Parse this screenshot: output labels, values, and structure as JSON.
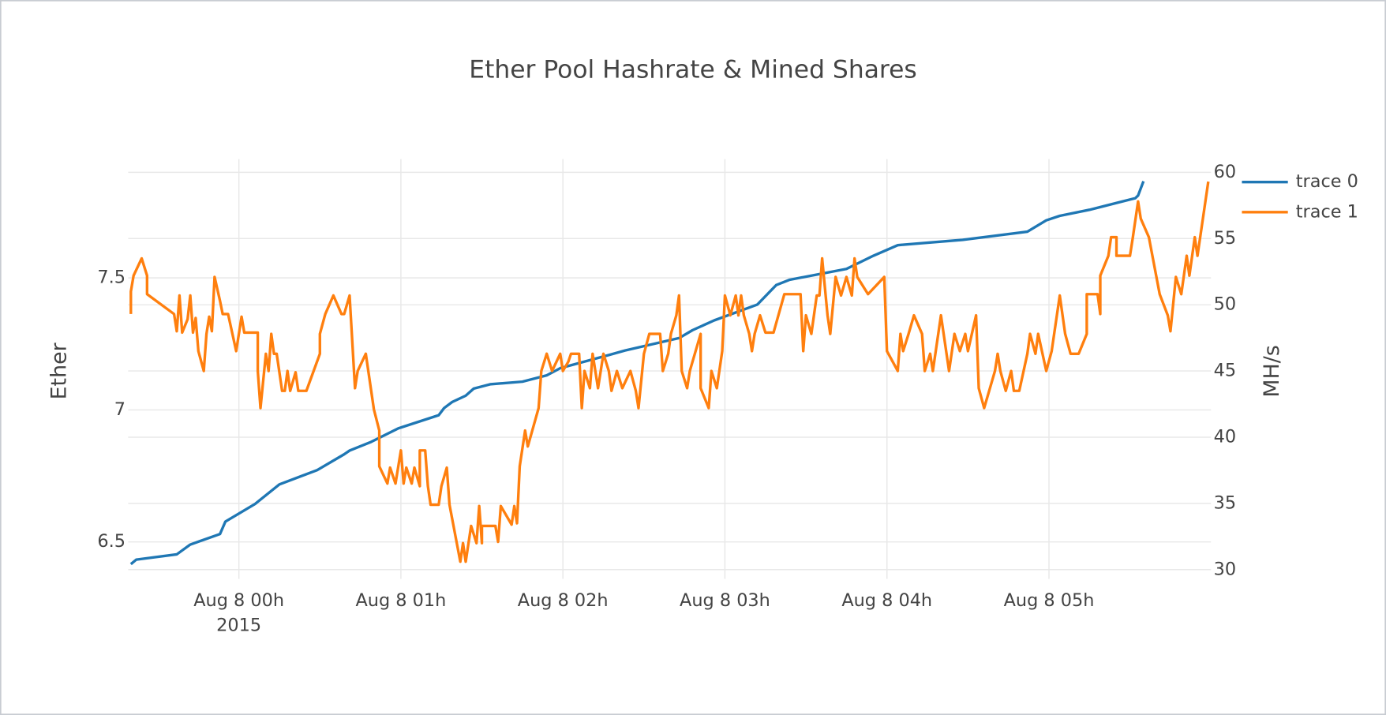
{
  "chart_data": {
    "type": "line",
    "title": "Ether Pool Hashrate & Mined Shares",
    "y_label": "Ether",
    "y2_label": "MH/s",
    "xlim": [
      "2015-08-07T23:19",
      "2015-08-08T06:00"
    ],
    "xticks": [
      {
        "value": "2015-08-08T00:00",
        "label": "Aug 8 00h"
      },
      {
        "value": "2015-08-08T01:00",
        "label": "Aug 8 01h"
      },
      {
        "value": "2015-08-08T02:00",
        "label": "Aug 8 02h"
      },
      {
        "value": "2015-08-08T03:00",
        "label": "Aug 8 03h"
      },
      {
        "value": "2015-08-08T04:00",
        "label": "Aug 8 04h"
      },
      {
        "value": "2015-08-08T05:00",
        "label": "Aug 8 05h"
      }
    ],
    "x_year_label": "2015",
    "ylim": [
      6.36,
      7.95
    ],
    "yticks": [
      6.5,
      7,
      7.5
    ],
    "y2lim": [
      29.3,
      61
    ],
    "y2ticks": [
      30,
      35,
      40,
      45,
      50,
      55,
      60
    ],
    "grid": true,
    "legend": "right",
    "series": [
      {
        "name": "trace 0",
        "color": "#1f77b4",
        "axis": "y",
        "x": [
          "2015-08-07T23:20",
          "2015-08-07T23:22",
          "2015-08-07T23:37",
          "2015-08-07T23:42",
          "2015-08-07T23:53",
          "2015-08-07T23:55",
          "2015-08-08T00:06",
          "2015-08-08T00:15",
          "2015-08-08T00:29",
          "2015-08-08T00:39",
          "2015-08-08T00:41",
          "2015-08-08T00:49",
          "2015-08-08T00:59",
          "2015-08-08T01:14",
          "2015-08-08T01:16",
          "2015-08-08T01:19",
          "2015-08-08T01:24",
          "2015-08-08T01:27",
          "2015-08-08T01:33",
          "2015-08-08T01:45",
          "2015-08-08T01:54",
          "2015-08-08T01:59",
          "2015-08-08T02:17",
          "2015-08-08T02:23",
          "2015-08-08T02:43",
          "2015-08-08T02:48",
          "2015-08-08T02:56",
          "2015-08-08T03:12",
          "2015-08-08T03:19",
          "2015-08-08T03:24",
          "2015-08-08T03:45",
          "2015-08-08T03:55",
          "2015-08-08T04:04",
          "2015-08-08T04:28",
          "2015-08-08T04:52",
          "2015-08-08T04:59",
          "2015-08-08T05:04",
          "2015-08-08T05:15",
          "2015-08-08T05:32",
          "2015-08-08T05:33",
          "2015-08-08T05:35"
        ],
        "values": [
          6.416,
          6.433,
          6.453,
          6.49,
          6.53,
          6.577,
          6.644,
          6.718,
          6.772,
          6.832,
          6.846,
          6.879,
          6.93,
          6.98,
          7.007,
          7.03,
          7.054,
          7.081,
          7.097,
          7.107,
          7.131,
          7.158,
          7.208,
          7.225,
          7.272,
          7.302,
          7.339,
          7.399,
          7.473,
          7.493,
          7.534,
          7.584,
          7.624,
          7.644,
          7.675,
          7.718,
          7.735,
          7.758,
          7.802,
          7.812,
          7.866
        ]
      },
      {
        "name": "trace 1",
        "color": "#ff7f0e",
        "axis": "y2",
        "x": [
          "2015-08-07T23:20",
          "2015-08-07T23:20",
          "2015-08-07T23:21",
          "2015-08-07T23:24",
          "2015-08-07T23:26",
          "2015-08-07T23:26",
          "2015-08-07T23:36",
          "2015-08-07T23:37",
          "2015-08-07T23:38",
          "2015-08-07T23:39",
          "2015-08-07T23:41",
          "2015-08-07T23:42",
          "2015-08-07T23:43",
          "2015-08-07T23:44",
          "2015-08-07T23:45",
          "2015-08-07T23:47",
          "2015-08-07T23:48",
          "2015-08-07T23:49",
          "2015-08-07T23:50",
          "2015-08-07T23:51",
          "2015-08-07T23:53",
          "2015-08-07T23:54",
          "2015-08-07T23:56",
          "2015-08-07T23:59",
          "2015-08-08T00:00",
          "2015-08-08T00:01",
          "2015-08-08T00:02",
          "2015-08-08T00:07",
          "2015-08-08T00:07",
          "2015-08-08T00:08",
          "2015-08-08T00:10",
          "2015-08-08T00:11",
          "2015-08-08T00:12",
          "2015-08-08T00:13",
          "2015-08-08T00:14",
          "2015-08-08T00:16",
          "2015-08-08T00:17",
          "2015-08-08T00:18",
          "2015-08-08T00:19",
          "2015-08-08T00:21",
          "2015-08-08T00:22",
          "2015-08-08T00:25",
          "2015-08-08T00:30",
          "2015-08-08T00:30",
          "2015-08-08T00:32",
          "2015-08-08T00:35",
          "2015-08-08T00:38",
          "2015-08-08T00:39",
          "2015-08-08T00:41",
          "2015-08-08T00:43",
          "2015-08-08T00:44",
          "2015-08-08T00:47",
          "2015-08-08T00:50",
          "2015-08-08T00:52",
          "2015-08-08T00:52",
          "2015-08-08T00:55",
          "2015-08-08T00:56",
          "2015-08-08T00:58",
          "2015-08-08T01:00",
          "2015-08-08T01:01",
          "2015-08-08T01:02",
          "2015-08-08T01:04",
          "2015-08-08T01:05",
          "2015-08-08T01:07",
          "2015-08-08T01:07",
          "2015-08-08T01:09",
          "2015-08-08T01:10",
          "2015-08-08T01:11",
          "2015-08-08T01:14",
          "2015-08-08T01:15",
          "2015-08-08T01:17",
          "2015-08-08T01:18",
          "2015-08-08T01:22",
          "2015-08-08T01:23",
          "2015-08-08T01:24",
          "2015-08-08T01:26",
          "2015-08-08T01:28",
          "2015-08-08T01:29",
          "2015-08-08T01:30",
          "2015-08-08T01:30",
          "2015-08-08T01:35",
          "2015-08-08T01:36",
          "2015-08-08T01:37",
          "2015-08-08T01:41",
          "2015-08-08T01:42",
          "2015-08-08T01:43",
          "2015-08-08T01:44",
          "2015-08-08T01:46",
          "2015-08-08T01:47",
          "2015-08-08T01:51",
          "2015-08-08T01:52",
          "2015-08-08T01:54",
          "2015-08-08T01:56",
          "2015-08-08T01:59",
          "2015-08-08T02:00",
          "2015-08-08T02:02",
          "2015-08-08T02:03",
          "2015-08-08T02:06",
          "2015-08-08T02:07",
          "2015-08-08T02:08",
          "2015-08-08T02:10",
          "2015-08-08T02:11",
          "2015-08-08T02:13",
          "2015-08-08T02:15",
          "2015-08-08T02:17",
          "2015-08-08T02:18",
          "2015-08-08T02:20",
          "2015-08-08T02:22",
          "2015-08-08T02:25",
          "2015-08-08T02:27",
          "2015-08-08T02:28",
          "2015-08-08T02:30",
          "2015-08-08T02:32",
          "2015-08-08T02:36",
          "2015-08-08T02:37",
          "2015-08-08T02:39",
          "2015-08-08T02:40",
          "2015-08-08T02:42",
          "2015-08-08T02:43",
          "2015-08-08T02:44",
          "2015-08-08T02:46",
          "2015-08-08T02:47",
          "2015-08-08T02:51",
          "2015-08-08T02:51",
          "2015-08-08T02:54",
          "2015-08-08T02:55",
          "2015-08-08T02:57",
          "2015-08-08T02:59",
          "2015-08-08T03:00",
          "2015-08-08T03:02",
          "2015-08-08T03:04",
          "2015-08-08T03:05",
          "2015-08-08T03:06",
          "2015-08-08T03:07",
          "2015-08-08T03:09",
          "2015-08-08T03:10",
          "2015-08-08T03:11",
          "2015-08-08T03:13",
          "2015-08-08T03:15",
          "2015-08-08T03:18",
          "2015-08-08T03:22",
          "2015-08-08T03:28",
          "2015-08-08T03:29",
          "2015-08-08T03:30",
          "2015-08-08T03:32",
          "2015-08-08T03:34",
          "2015-08-08T03:35",
          "2015-08-08T03:36",
          "2015-08-08T03:38",
          "2015-08-08T03:39",
          "2015-08-08T03:41",
          "2015-08-08T03:43",
          "2015-08-08T03:45",
          "2015-08-08T03:47",
          "2015-08-08T03:48",
          "2015-08-08T03:49",
          "2015-08-08T03:53",
          "2015-08-08T03:59",
          "2015-08-08T04:00",
          "2015-08-08T04:04",
          "2015-08-08T04:05",
          "2015-08-08T04:06",
          "2015-08-08T04:08",
          "2015-08-08T04:10",
          "2015-08-08T04:13",
          "2015-08-08T04:14",
          "2015-08-08T04:16",
          "2015-08-08T04:17",
          "2015-08-08T04:20",
          "2015-08-08T04:23",
          "2015-08-08T04:25",
          "2015-08-08T04:27",
          "2015-08-08T04:29",
          "2015-08-08T04:30",
          "2015-08-08T04:33",
          "2015-08-08T04:34",
          "2015-08-08T04:36",
          "2015-08-08T04:40",
          "2015-08-08T04:41",
          "2015-08-08T04:42",
          "2015-08-08T04:44",
          "2015-08-08T04:46",
          "2015-08-08T04:47",
          "2015-08-08T04:49",
          "2015-08-08T04:52",
          "2015-08-08T04:53",
          "2015-08-08T04:55",
          "2015-08-08T04:56",
          "2015-08-08T04:59",
          "2015-08-08T05:01",
          "2015-08-08T05:04",
          "2015-08-08T05:06",
          "2015-08-08T05:08",
          "2015-08-08T05:11",
          "2015-08-08T05:14",
          "2015-08-08T05:14",
          "2015-08-08T05:18",
          "2015-08-08T05:19",
          "2015-08-08T05:19",
          "2015-08-08T05:22",
          "2015-08-08T05:23",
          "2015-08-08T05:25",
          "2015-08-08T05:25",
          "2015-08-08T05:30",
          "2015-08-08T05:31",
          "2015-08-08T05:33",
          "2015-08-08T05:34",
          "2015-08-08T05:37",
          "2015-08-08T05:41",
          "2015-08-08T05:44",
          "2015-08-08T05:45",
          "2015-08-08T05:47",
          "2015-08-08T05:49",
          "2015-08-08T05:51",
          "2015-08-08T05:52",
          "2015-08-08T05:54",
          "2015-08-08T05:55",
          "2015-08-08T05:57",
          "2015-08-08T05:59"
        ],
        "values": [
          49.3,
          51,
          52.2,
          53.5,
          52.2,
          50.8,
          49.3,
          48,
          50.7,
          47.9,
          48.9,
          50.7,
          47.9,
          49,
          46.5,
          45,
          47.8,
          49.1,
          48,
          52.1,
          50.3,
          49.3,
          49.3,
          46.5,
          47.8,
          49.1,
          47.9,
          47.9,
          45,
          42.2,
          46.3,
          45,
          47.8,
          46.3,
          46.3,
          43.5,
          43.5,
          45,
          43.5,
          44.9,
          43.5,
          43.5,
          46.3,
          47.8,
          49.3,
          50.7,
          49.3,
          49.3,
          50.7,
          43.7,
          45,
          46.3,
          42.1,
          40.5,
          37.8,
          36.5,
          37.7,
          36.5,
          39,
          36.5,
          37.7,
          36.5,
          37.7,
          36.3,
          39,
          39,
          36.3,
          34.9,
          34.9,
          36.3,
          37.7,
          34.9,
          30.6,
          32,
          30.6,
          33.3,
          32,
          34.8,
          32,
          33.3,
          33.3,
          32.1,
          34.8,
          33.4,
          34.8,
          33.5,
          37.8,
          40.5,
          39.3,
          42.2,
          45,
          46.3,
          45,
          46.3,
          45,
          45.7,
          46.3,
          46.3,
          42.2,
          45,
          43.7,
          46.3,
          43.7,
          46.3,
          45,
          43.5,
          45,
          43.7,
          45,
          43.5,
          42.2,
          46.3,
          47.8,
          47.8,
          45,
          46.3,
          47.8,
          49.2,
          50.7,
          45,
          43.7,
          45,
          47.8,
          43.7,
          42.2,
          45,
          43.7,
          46.5,
          50.7,
          49.2,
          50.7,
          49.2,
          50.7,
          49.2,
          47.8,
          46.5,
          47.8,
          49.2,
          47.9,
          47.9,
          50.8,
          50.8,
          46.5,
          49.2,
          47.8,
          50.7,
          50.7,
          53.5,
          49.2,
          47.8,
          52.1,
          50.7,
          52.1,
          50.7,
          53.5,
          52.1,
          50.8,
          52.1,
          46.5,
          45,
          47.8,
          46.5,
          47.8,
          49.2,
          47.8,
          45,
          46.3,
          45,
          49.2,
          45,
          47.8,
          46.5,
          47.8,
          46.5,
          49.2,
          43.7,
          42.2,
          45,
          46.3,
          45,
          43.5,
          45,
          43.5,
          43.5,
          46.3,
          47.8,
          46.3,
          47.8,
          45,
          46.5,
          50.7,
          47.8,
          46.3,
          46.3,
          47.8,
          50.8,
          50.8,
          49.3,
          52.2,
          53.7,
          55.1,
          55.1,
          53.7,
          53.7,
          55,
          57.8,
          56.5,
          55.1,
          50.8,
          49.2,
          48,
          52.1,
          50.8,
          53.7,
          52.2,
          55.1,
          53.7,
          56.5,
          59.3
        ]
      }
    ]
  }
}
